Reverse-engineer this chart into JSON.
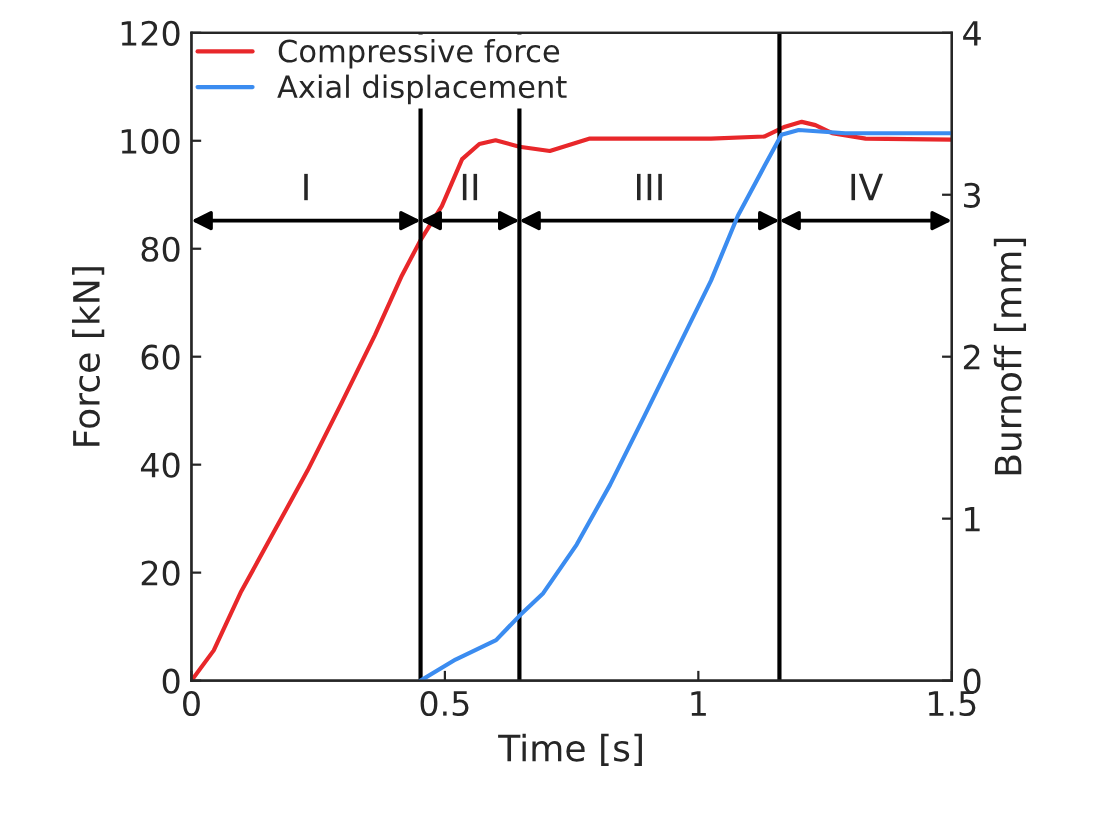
{
  "chart_data": {
    "type": "line",
    "xlabel": "Time [s]",
    "ylabel": "Force [kN]",
    "y2label": "Burnoff [mm]",
    "xlim": [
      0,
      1.5
    ],
    "xticks": [
      0,
      {
        "value": 0.5,
        "label": "0.5"
      },
      1,
      {
        "value": 1.5,
        "label": "1.5"
      }
    ],
    "ylim": [
      0,
      120
    ],
    "yticks": [
      0,
      20,
      40,
      60,
      80,
      100,
      120
    ],
    "y2lim": [
      0,
      4
    ],
    "y2ticks": [
      0,
      1,
      2,
      3,
      4
    ],
    "grid": false,
    "legend": "top left",
    "marker": "none",
    "line_style": "solid",
    "series": [
      {
        "name": "Compressive force",
        "color": "#e8272a",
        "x": [
          0,
          0.044,
          0.097,
          0.163,
          0.229,
          0.296,
          0.362,
          0.415,
          0.452,
          0.494,
          0.534,
          0.568,
          0.6,
          0.647,
          0.707,
          0.786,
          0.893,
          1.025,
          1.131,
          1.171,
          1.204,
          1.231,
          1.264,
          1.33,
          1.5
        ],
        "values": [
          0,
          5.6,
          16.3,
          27.6,
          38.9,
          51.4,
          64,
          75,
          81.6,
          87.9,
          96.6,
          99.4,
          100.1,
          98.9,
          98.1,
          100.4,
          100.4,
          100.4,
          100.8,
          102.6,
          103.5,
          102.9,
          101.4,
          100.4,
          100.2
        ]
      },
      {
        "name": "Axial displacement",
        "color": "#3b8cf0",
        "axis": "y2",
        "x": [
          0.452,
          0.521,
          0.601,
          0.647,
          0.694,
          0.76,
          0.826,
          0.893,
          0.959,
          1.025,
          1.078,
          1.131,
          1.164,
          1.198,
          1.29,
          1.5
        ],
        "values": [
          0,
          0.13,
          0.25,
          0.4,
          0.54,
          0.84,
          1.21,
          1.63,
          2.05,
          2.47,
          2.87,
          3.18,
          3.37,
          3.4,
          3.38,
          3.38
        ]
      }
    ],
    "ref_lines": [
      {
        "axis": "x",
        "value": 0.452,
        "color": "#000000"
      },
      {
        "axis": "x",
        "value": 0.647,
        "color": "#000000"
      },
      {
        "axis": "x",
        "value": 1.16,
        "color": "#000000"
      }
    ],
    "annotations": [
      "I",
      "II",
      "III",
      "IV"
    ]
  }
}
